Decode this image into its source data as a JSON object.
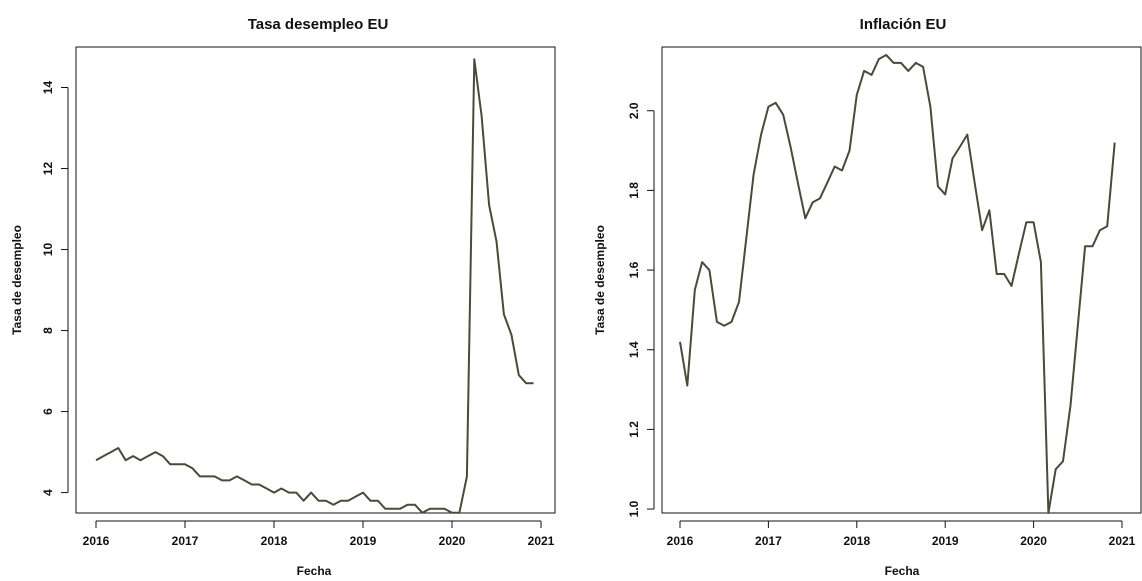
{
  "colors": {
    "line": "#4a4a3a",
    "axis": "#111111",
    "background": "#ffffff"
  },
  "chart_data": [
    {
      "type": "line",
      "title": "Tasa desempleo EU",
      "xlabel": "Fecha",
      "ylabel": "Tasa de desempleo",
      "xlim": [
        2016,
        2021
      ],
      "ylim": [
        3.2,
        15.0
      ],
      "grid": false,
      "xticks": [
        2016,
        2017,
        2018,
        2019,
        2020,
        2021
      ],
      "xtick_labels": [
        "2016",
        "2017",
        "2018",
        "2019",
        "2020",
        "2021"
      ],
      "yticks": [
        4,
        6,
        8,
        10,
        12,
        14
      ],
      "ytick_labels": [
        "4",
        "6",
        "8",
        "10",
        "12",
        "14"
      ],
      "series": [
        {
          "x": [
            2016.0,
            2016.083,
            2016.167,
            2016.25,
            2016.333,
            2016.417,
            2016.5,
            2016.583,
            2016.667,
            2016.75,
            2016.833,
            2016.917,
            2017.0,
            2017.083,
            2017.167,
            2017.25,
            2017.333,
            2017.417,
            2017.5,
            2017.583,
            2017.667,
            2017.75,
            2017.833,
            2017.917,
            2018.0,
            2018.083,
            2018.167,
            2018.25,
            2018.333,
            2018.417,
            2018.5,
            2018.583,
            2018.667,
            2018.75,
            2018.833,
            2018.917,
            2019.0,
            2019.083,
            2019.167,
            2019.25,
            2019.333,
            2019.417,
            2019.5,
            2019.583,
            2019.667,
            2019.75,
            2019.833,
            2019.917,
            2020.0,
            2020.083,
            2020.167,
            2020.25,
            2020.333,
            2020.417,
            2020.5,
            2020.583,
            2020.667,
            2020.75,
            2020.833,
            2020.917
          ],
          "y": [
            4.8,
            4.9,
            5.0,
            5.1,
            4.8,
            4.9,
            4.8,
            4.9,
            5.0,
            4.9,
            4.7,
            4.7,
            4.7,
            4.6,
            4.4,
            4.4,
            4.4,
            4.3,
            4.3,
            4.4,
            4.3,
            4.2,
            4.2,
            4.1,
            4.0,
            4.1,
            4.0,
            4.0,
            3.8,
            4.0,
            3.8,
            3.8,
            3.7,
            3.8,
            3.8,
            3.9,
            4.0,
            3.8,
            3.8,
            3.6,
            3.6,
            3.6,
            3.7,
            3.7,
            3.5,
            3.6,
            3.6,
            3.6,
            3.5,
            3.5,
            4.4,
            14.7,
            13.3,
            11.1,
            10.2,
            8.4,
            7.9,
            6.9,
            6.7,
            6.7
          ]
        }
      ]
    },
    {
      "type": "line",
      "title": "Inflación EU",
      "xlabel": "Fecha",
      "ylabel": "Tasa de desempleo",
      "xlim": [
        2016,
        2021
      ],
      "ylim": [
        0.96,
        2.16
      ],
      "grid": false,
      "xticks": [
        2016,
        2017,
        2018,
        2019,
        2020,
        2021
      ],
      "xtick_labels": [
        "2016",
        "2017",
        "2018",
        "2019",
        "2020",
        "2021"
      ],
      "yticks": [
        1.0,
        1.2,
        1.4,
        1.6,
        1.8,
        2.0
      ],
      "ytick_labels": [
        "1.0",
        "1.2",
        "1.4",
        "1.6",
        "1.8",
        "2.0"
      ],
      "series": [
        {
          "x": [
            2016.0,
            2016.083,
            2016.167,
            2016.25,
            2016.333,
            2016.417,
            2016.5,
            2016.583,
            2016.667,
            2016.75,
            2016.833,
            2016.917,
            2017.0,
            2017.083,
            2017.167,
            2017.25,
            2017.333,
            2017.417,
            2017.5,
            2017.583,
            2017.667,
            2017.75,
            2017.833,
            2017.917,
            2018.0,
            2018.083,
            2018.167,
            2018.25,
            2018.333,
            2018.417,
            2018.5,
            2018.583,
            2018.667,
            2018.75,
            2018.833,
            2018.917,
            2019.0,
            2019.083,
            2019.167,
            2019.25,
            2019.333,
            2019.417,
            2019.5,
            2019.583,
            2019.667,
            2019.75,
            2019.833,
            2019.917,
            2020.0,
            2020.083,
            2020.167,
            2020.25,
            2020.333,
            2020.417,
            2020.5,
            2020.583,
            2020.667,
            2020.75,
            2020.833,
            2020.917
          ],
          "y": [
            1.42,
            1.31,
            1.55,
            1.62,
            1.6,
            1.47,
            1.46,
            1.47,
            1.52,
            1.68,
            1.84,
            1.94,
            2.01,
            2.02,
            1.99,
            1.91,
            1.82,
            1.73,
            1.77,
            1.78,
            1.82,
            1.86,
            1.85,
            1.9,
            2.04,
            2.1,
            2.09,
            2.13,
            2.14,
            2.12,
            2.12,
            2.1,
            2.12,
            2.11,
            2.01,
            1.81,
            1.79,
            1.88,
            1.91,
            1.94,
            1.82,
            1.7,
            1.75,
            1.59,
            1.59,
            1.56,
            1.64,
            1.72,
            1.72,
            1.62,
            0.99,
            1.1,
            1.12,
            1.26,
            1.46,
            1.66,
            1.66,
            1.7,
            1.71,
            1.92
          ]
        }
      ]
    }
  ]
}
